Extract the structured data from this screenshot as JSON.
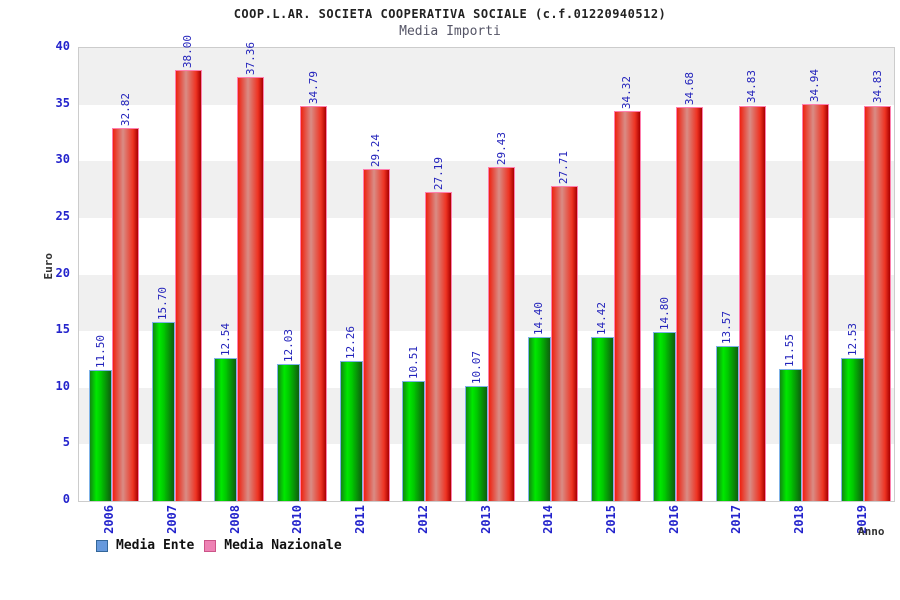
{
  "header": {
    "title": "COOP.L.AR. SOCIETA COOPERATIVA SOCIALE (c.f.01220940512)",
    "subtitle": "Media Importi"
  },
  "chart_data": {
    "type": "bar",
    "title": "COOP.L.AR. SOCIETA COOPERATIVA SOCIALE (c.f.01220940512)",
    "subtitle": "Media Importi",
    "xlabel": "Anno",
    "ylabel": "Euro",
    "ylim": [
      0,
      40
    ],
    "y_ticks": [
      0,
      5,
      10,
      15,
      20,
      25,
      30,
      35,
      40
    ],
    "grid": "alternating-horizontal-bands",
    "legend_position": "bottom-left",
    "band_colors": [
      "#f0f0f0",
      "#ffffff"
    ],
    "axis_text_color": "#2424cc",
    "value_label_color": "#2323bb",
    "categories": [
      "2006",
      "2007",
      "2008",
      "2010",
      "2011",
      "2012",
      "2013",
      "2014",
      "2015",
      "2016",
      "2017",
      "2018",
      "2019"
    ],
    "series": [
      {
        "name": "Media Ente",
        "values": [
          11.5,
          15.7,
          12.54,
          12.03,
          12.26,
          10.51,
          10.07,
          14.4,
          14.42,
          14.8,
          13.57,
          11.55,
          12.53
        ],
        "value_labels": [
          "11.50",
          "15.70",
          "12.54",
          "12.03",
          "12.26",
          "10.51",
          "10.07",
          "14.40",
          "14.42",
          "14.80",
          "13.57",
          "11.55",
          "12.53"
        ],
        "bar_gradient": [
          "#118811",
          "#00e800",
          "#00cc00",
          "#0e5e0e"
        ],
        "bar_border": "#7fb2e8",
        "swatch_fill": "#6699dd",
        "swatch_border": "#336699"
      },
      {
        "name": "Media Nazionale",
        "values": [
          32.82,
          38.0,
          37.36,
          34.79,
          29.24,
          27.19,
          29.43,
          27.71,
          34.32,
          34.68,
          34.83,
          34.94,
          34.83
        ],
        "value_labels": [
          "32.82",
          "38.00",
          "37.36",
          "34.79",
          "29.24",
          "27.19",
          "29.43",
          "27.71",
          "34.32",
          "34.68",
          "34.83",
          "34.94",
          "34.83"
        ],
        "bar_gradient": [
          "#ee2211",
          "#d98c85",
          "#ee3322",
          "#aa0000"
        ],
        "bar_border": "#ff7fae",
        "swatch_fill": "#ee82b4",
        "swatch_border": "#cc5588"
      }
    ]
  }
}
